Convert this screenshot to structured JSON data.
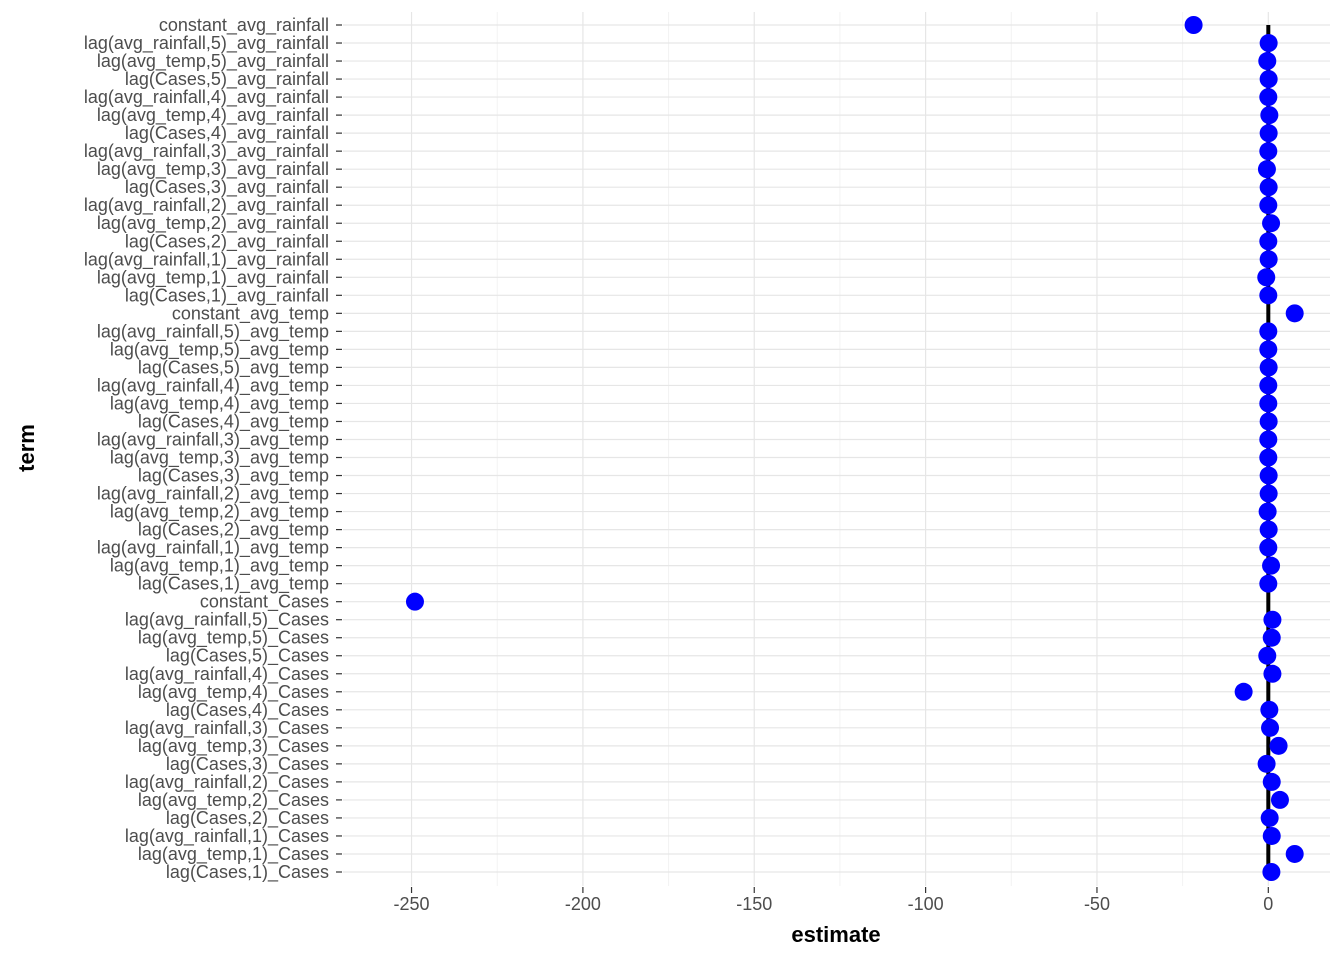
{
  "chart_data": {
    "type": "scatter",
    "xlabel": "estimate",
    "ylabel": "term",
    "xlim": [
      -270,
      18
    ],
    "x_ticks": [
      -250,
      -200,
      -150,
      -100,
      -50,
      0
    ],
    "x_tick_labels": [
      "-250",
      "-200",
      "-150",
      "-100",
      "-50",
      "0"
    ],
    "reference_line_x": 0,
    "grid": true,
    "point_color": "#0000ff",
    "reference_line_color": "#000000",
    "categories": [
      "constant_avg_rainfall",
      "lag(avg_rainfall,5)_avg_rainfall",
      "lag(avg_temp,5)_avg_rainfall",
      "lag(Cases,5)_avg_rainfall",
      "lag(avg_rainfall,4)_avg_rainfall",
      "lag(avg_temp,4)_avg_rainfall",
      "lag(Cases,4)_avg_rainfall",
      "lag(avg_rainfall,3)_avg_rainfall",
      "lag(avg_temp,3)_avg_rainfall",
      "lag(Cases,3)_avg_rainfall",
      "lag(avg_rainfall,2)_avg_rainfall",
      "lag(avg_temp,2)_avg_rainfall",
      "lag(Cases,2)_avg_rainfall",
      "lag(avg_rainfall,1)_avg_rainfall",
      "lag(avg_temp,1)_avg_rainfall",
      "lag(Cases,1)_avg_rainfall",
      "constant_avg_temp",
      "lag(avg_rainfall,5)_avg_temp",
      "lag(avg_temp,5)_avg_temp",
      "lag(Cases,5)_avg_temp",
      "lag(avg_rainfall,4)_avg_temp",
      "lag(avg_temp,4)_avg_temp",
      "lag(Cases,4)_avg_temp",
      "lag(avg_rainfall,3)_avg_temp",
      "lag(avg_temp,3)_avg_temp",
      "lag(Cases,3)_avg_temp",
      "lag(avg_rainfall,2)_avg_temp",
      "lag(avg_temp,2)_avg_temp",
      "lag(Cases,2)_avg_temp",
      "lag(avg_rainfall,1)_avg_temp",
      "lag(avg_temp,1)_avg_temp",
      "lag(Cases,1)_avg_temp",
      "constant_Cases",
      "lag(avg_rainfall,5)_Cases",
      "lag(avg_temp,5)_Cases",
      "lag(Cases,5)_Cases",
      "lag(avg_rainfall,4)_Cases",
      "lag(avg_temp,4)_Cases",
      "lag(Cases,4)_Cases",
      "lag(avg_rainfall,3)_Cases",
      "lag(avg_temp,3)_Cases",
      "lag(Cases,3)_Cases",
      "lag(avg_rainfall,2)_Cases",
      "lag(avg_temp,2)_Cases",
      "lag(Cases,2)_Cases",
      "lag(avg_rainfall,1)_Cases",
      "lag(avg_temp,1)_Cases",
      "lag(Cases,1)_Cases"
    ],
    "values": [
      -21.8,
      0.1,
      -0.3,
      0.1,
      0.0,
      0.3,
      0.1,
      0.0,
      -0.4,
      0.1,
      0.0,
      0.8,
      0.0,
      0.1,
      -0.6,
      0.0,
      7.7,
      0.0,
      0.0,
      0.1,
      0.0,
      0.0,
      0.1,
      0.0,
      0.0,
      0.1,
      0.1,
      -0.2,
      0.1,
      0.0,
      0.8,
      0.0,
      -249.0,
      1.2,
      1.0,
      -0.3,
      1.2,
      -7.2,
      0.3,
      0.5,
      3.0,
      -0.5,
      1.0,
      3.4,
      0.4,
      1.0,
      7.7,
      0.9
    ]
  }
}
